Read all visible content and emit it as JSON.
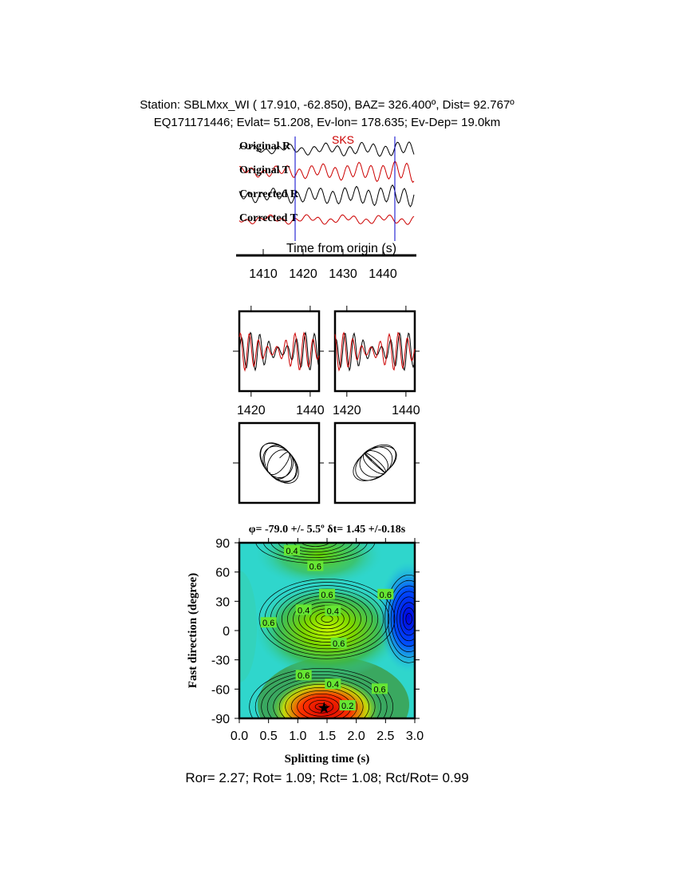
{
  "header": {
    "line1": "Station: SBLMxx_WI ( 17.910, -62.850), BAZ= 326.400º, Dist= 92.767º",
    "line2": "EQ171171446; Evlat= 51.208, Ev-lon= 178.635; Ev-Dep= 19.0km"
  },
  "colors": {
    "trace_black": "#000000",
    "trace_red": "#cc0000",
    "marker_blue": "#0000cc",
    "phase_label": "#cc0000"
  },
  "chart_data": [
    {
      "type": "line",
      "phase_label": "SKS",
      "xlabel": "Time from origin (s)",
      "xticks": [
        1410,
        1420,
        1430,
        1440
      ],
      "xlim": [
        1404,
        1448
      ],
      "markers": [
        1418,
        1443
      ],
      "series": [
        {
          "name": "Original R",
          "color": "#000000"
        },
        {
          "name": "Original T",
          "color": "#cc0000"
        },
        {
          "name": "Corrected R",
          "color": "#000000"
        },
        {
          "name": "Corrected T",
          "color": "#cc0000"
        }
      ]
    },
    {
      "type": "line",
      "panels": [
        {
          "xticks": [
            "1420",
            "1440"
          ],
          "xlim": [
            1416,
            1443
          ]
        },
        {
          "xticks": [
            "1420",
            "1440"
          ],
          "xlim": [
            1416,
            1443
          ]
        }
      ]
    },
    {
      "type": "scatter",
      "panels": [
        "particle-motion-original",
        "particle-motion-corrected"
      ]
    },
    {
      "type": "heatmap",
      "title": "φ= -79.0 +/- 5.5º δt= 1.45 +/-0.18s",
      "xlabel": "Splitting time (s)",
      "ylabel": "Fast direction (degree)",
      "xlim": [
        0,
        3
      ],
      "ylim": [
        -90,
        90
      ],
      "xticks": [
        "0.0",
        "0.5",
        "1.0",
        "1.5",
        "2.0",
        "2.5",
        "3.0"
      ],
      "yticks": [
        "-90",
        "-60",
        "-30",
        "0",
        "30",
        "60",
        "90"
      ],
      "best": {
        "dt": 1.45,
        "phi": -79
      },
      "contour_labels": [
        {
          "text": "0.4",
          "dt": 0.9,
          "phi": 82
        },
        {
          "text": "0.6",
          "dt": 1.3,
          "phi": 66
        },
        {
          "text": "0.6",
          "dt": 1.5,
          "phi": 37
        },
        {
          "text": "0.4",
          "dt": 1.1,
          "phi": 21
        },
        {
          "text": "0.4",
          "dt": 1.6,
          "phi": 20
        },
        {
          "text": "0.6",
          "dt": 0.5,
          "phi": 8
        },
        {
          "text": "0.6",
          "dt": 1.7,
          "phi": -13
        },
        {
          "text": "0.6",
          "dt": 2.5,
          "phi": 37
        },
        {
          "text": "0.6",
          "dt": 1.1,
          "phi": -46
        },
        {
          "text": "0.4",
          "dt": 1.6,
          "phi": -55
        },
        {
          "text": "0.6",
          "dt": 2.4,
          "phi": -60
        },
        {
          "text": "0.2",
          "dt": 1.85,
          "phi": -77
        }
      ]
    }
  ],
  "footer": "Ror= 2.27; Rot= 1.09; Rct= 1.08; Rct/Rot= 0.99"
}
